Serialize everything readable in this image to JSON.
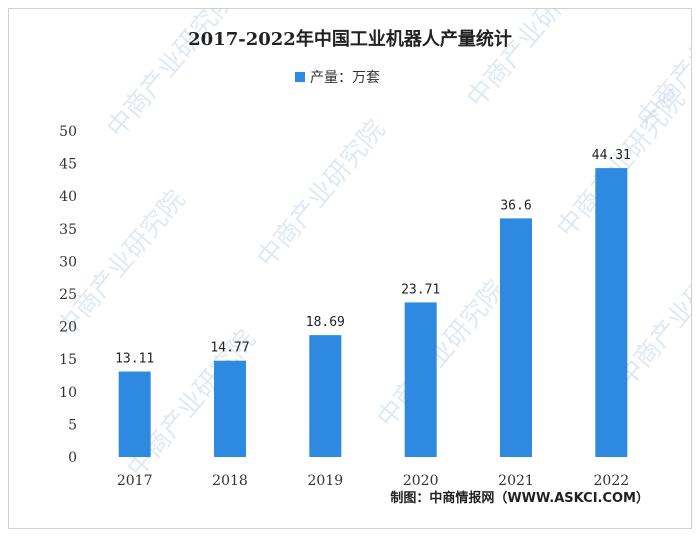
{
  "watermark": "中商产业研究院",
  "chart_data": {
    "type": "bar",
    "title": "2017-2022年中国工业机器人产量统计",
    "legend": [
      {
        "label": "产量：万套",
        "color": "#2e8ae0"
      }
    ],
    "categories": [
      "2017",
      "2018",
      "2019",
      "2020",
      "2021",
      "2022"
    ],
    "series": [
      {
        "name": "产量：万套",
        "values": [
          13.11,
          14.77,
          18.69,
          23.71,
          36.6,
          44.31
        ],
        "labels": [
          "13.11",
          "14.77",
          "18.69",
          "23.71",
          "36.6",
          "44.31"
        ]
      }
    ],
    "ylim": [
      0,
      50
    ],
    "yticks": [
      0,
      5,
      10,
      15,
      20,
      25,
      30,
      35,
      40,
      45,
      50
    ],
    "bar_color": "#2e8ae0",
    "grid": false,
    "source": "制图：中商情报网（WWW.ASKCI.COM）"
  }
}
